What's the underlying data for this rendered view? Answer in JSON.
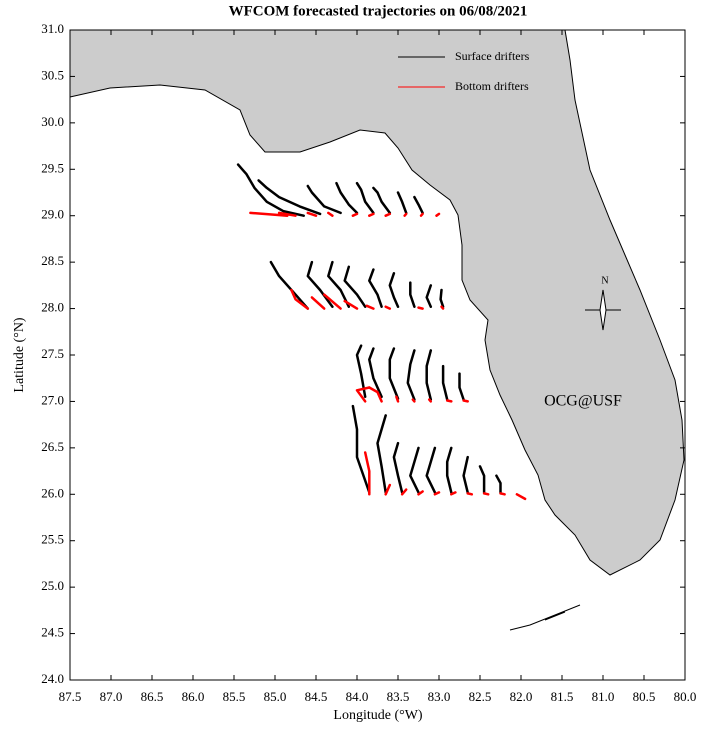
{
  "chart_data": {
    "type": "trajectory",
    "title": "WFCOM forecasted trajectories on 06/08/2021",
    "xlabel": "Longitude (°W)",
    "ylabel": "Latitude (°N)",
    "annotation": "OCG@USF",
    "annotation_color": "#ff0000",
    "compass_label": "N",
    "xlim": [
      87.5,
      80.0
    ],
    "ylim": [
      24.0,
      31.0
    ],
    "xticks": [
      87.5,
      {
        "value": 87,
        "label": "87.0"
      },
      86.5,
      {
        "value": 86,
        "label": "86.0"
      },
      85.5,
      {
        "value": 85,
        "label": "85.0"
      },
      84.5,
      {
        "value": 84,
        "label": "84.0"
      },
      83.5,
      {
        "value": 83,
        "label": "83.0"
      },
      82.5,
      {
        "value": 82,
        "label": "82.0"
      },
      81.5,
      {
        "value": 81,
        "label": "81.0"
      },
      80.5,
      {
        "value": 80,
        "label": "80.0"
      }
    ],
    "yticks": [
      {
        "value": 24,
        "label": "24.0"
      },
      24.5,
      {
        "value": 25,
        "label": "25.0"
      },
      25.5,
      {
        "value": 26,
        "label": "26.0"
      },
      26.5,
      {
        "value": 27,
        "label": "27.0"
      },
      27.5,
      {
        "value": 28,
        "label": "28.0"
      },
      28.5,
      {
        "value": 29,
        "label": "29.0"
      },
      29.5,
      {
        "value": 30,
        "label": "30.0"
      },
      30.5,
      {
        "value": 31,
        "label": "31.0"
      }
    ],
    "series": [
      {
        "name": "Surface drifters",
        "color": "#000000",
        "tracks": [
          {
            "x": [
              84.65,
              84.9,
              85.1,
              85.25,
              85.35,
              85.4,
              85.45
            ],
            "y": [
              29.0,
              29.05,
              29.15,
              29.3,
              29.45,
              29.5,
              29.55
            ]
          },
          {
            "x": [
              84.45,
              84.7,
              84.95,
              85.1,
              85.2
            ],
            "y": [
              29.02,
              29.1,
              29.2,
              29.3,
              29.38
            ]
          },
          {
            "x": [
              84.2,
              84.4,
              84.55,
              84.6
            ],
            "y": [
              29.03,
              29.1,
              29.25,
              29.32
            ]
          },
          {
            "x": [
              84.0,
              84.1,
              84.2,
              84.25
            ],
            "y": [
              29.03,
              29.12,
              29.25,
              29.35
            ]
          },
          {
            "x": [
              83.8,
              83.9,
              83.95,
              84.0
            ],
            "y": [
              29.03,
              29.15,
              29.28,
              29.35
            ]
          },
          {
            "x": [
              83.6,
              83.7,
              83.75,
              83.8
            ],
            "y": [
              29.03,
              29.15,
              29.25,
              29.3
            ]
          },
          {
            "x": [
              83.4,
              83.45,
              83.5
            ],
            "y": [
              29.03,
              29.15,
              29.25
            ]
          },
          {
            "x": [
              83.2,
              83.25,
              83.3
            ],
            "y": [
              29.03,
              29.12,
              29.2
            ]
          },
          {
            "x": [
              84.6,
              84.75,
              84.95,
              85.05
            ],
            "y": [
              28.0,
              28.15,
              28.35,
              28.5
            ]
          },
          {
            "x": [
              84.3,
              84.45,
              84.6,
              84.55
            ],
            "y": [
              28.02,
              28.2,
              28.35,
              28.5
            ]
          },
          {
            "x": [
              84.1,
              84.2,
              84.35,
              84.3
            ],
            "y": [
              28.02,
              28.2,
              28.35,
              28.5
            ]
          },
          {
            "x": [
              83.9,
              84.0,
              84.15,
              84.1
            ],
            "y": [
              28.02,
              28.15,
              28.3,
              28.45
            ]
          },
          {
            "x": [
              83.7,
              83.75,
              83.85,
              83.8
            ],
            "y": [
              28.02,
              28.15,
              28.3,
              28.42
            ]
          },
          {
            "x": [
              83.5,
              83.55,
              83.6,
              83.55
            ],
            "y": [
              28.02,
              28.12,
              28.25,
              28.38
            ]
          },
          {
            "x": [
              83.3,
              83.35,
              83.35
            ],
            "y": [
              28.02,
              28.15,
              28.28
            ]
          },
          {
            "x": [
              83.1,
              83.15,
              83.1
            ],
            "y": [
              28.02,
              28.12,
              28.25
            ]
          },
          {
            "x": [
              82.95,
              82.98,
              82.97
            ],
            "y": [
              28.02,
              28.1,
              28.2
            ]
          },
          {
            "x": [
              83.9,
              83.95,
              84.0,
              83.95
            ],
            "y": [
              27.05,
              27.3,
              27.5,
              27.6
            ]
          },
          {
            "x": [
              83.7,
              83.8,
              83.85,
              83.8
            ],
            "y": [
              27.05,
              27.25,
              27.45,
              27.57
            ]
          },
          {
            "x": [
              83.5,
              83.6,
              83.6,
              83.55
            ],
            "y": [
              27.03,
              27.25,
              27.45,
              27.57
            ]
          },
          {
            "x": [
              83.3,
              83.38,
              83.35,
              83.3
            ],
            "y": [
              27.02,
              27.2,
              27.4,
              27.55
            ]
          },
          {
            "x": [
              83.1,
              83.15,
              83.15,
              83.1
            ],
            "y": [
              27.02,
              27.2,
              27.38,
              27.55
            ]
          },
          {
            "x": [
              82.9,
              82.95,
              82.95
            ],
            "y": [
              27.02,
              27.2,
              27.38
            ]
          },
          {
            "x": [
              82.7,
              82.75,
              82.75
            ],
            "y": [
              27.02,
              27.15,
              27.3
            ]
          },
          {
            "x": [
              83.85,
              84.0,
              84.0,
              84.05
            ],
            "y": [
              26.02,
              26.4,
              26.7,
              26.95
            ]
          },
          {
            "x": [
              83.65,
              83.7,
              83.75,
              83.65
            ],
            "y": [
              26.02,
              26.3,
              26.55,
              26.85
            ]
          },
          {
            "x": [
              83.45,
              83.5,
              83.55,
              83.5
            ],
            "y": [
              26.02,
              26.2,
              26.4,
              26.55
            ]
          },
          {
            "x": [
              83.25,
              83.35,
              83.3,
              83.25
            ],
            "y": [
              26.02,
              26.2,
              26.35,
              26.5
            ]
          },
          {
            "x": [
              83.05,
              83.15,
              83.1,
              83.05
            ],
            "y": [
              26.02,
              26.2,
              26.35,
              26.5
            ]
          },
          {
            "x": [
              82.85,
              82.9,
              82.9,
              82.85
            ],
            "y": [
              26.02,
              26.2,
              26.35,
              26.5
            ]
          },
          {
            "x": [
              82.65,
              82.7,
              82.65
            ],
            "y": [
              26.02,
              26.2,
              26.4
            ]
          },
          {
            "x": [
              82.45,
              82.45,
              82.5
            ],
            "y": [
              26.02,
              26.2,
              26.3
            ]
          },
          {
            "x": [
              82.25,
              82.25,
              82.3
            ],
            "y": [
              26.02,
              26.12,
              26.2
            ]
          }
        ]
      },
      {
        "name": "Bottom drifters",
        "color": "#ff0000",
        "tracks": [
          {
            "x": [
              85.3,
              85.0,
              84.85
            ],
            "y": [
              29.03,
              29.01,
              29.0
            ]
          },
          {
            "x": [
              84.95,
              84.75
            ],
            "y": [
              29.03,
              29.0
            ]
          },
          {
            "x": [
              84.6,
              84.5
            ],
            "y": [
              29.03,
              29.0
            ]
          },
          {
            "x": [
              84.35,
              84.3
            ],
            "y": [
              29.03,
              29.0
            ]
          },
          {
            "x": [
              84.0,
              84.05
            ],
            "y": [
              29.02,
              29.0
            ]
          },
          {
            "x": [
              83.8,
              83.85
            ],
            "y": [
              29.02,
              29.0
            ]
          },
          {
            "x": [
              83.6,
              83.65
            ],
            "y": [
              29.02,
              29.0
            ]
          },
          {
            "x": [
              83.4,
              83.42
            ],
            "y": [
              29.02,
              29.0
            ]
          },
          {
            "x": [
              83.2,
              83.22
            ],
            "y": [
              29.02,
              29.0
            ]
          },
          {
            "x": [
              83.0,
              83.03
            ],
            "y": [
              29.02,
              29.0
            ]
          },
          {
            "x": [
              84.6,
              84.75,
              84.8
            ],
            "y": [
              28.0,
              28.1,
              28.2
            ]
          },
          {
            "x": [
              84.4,
              84.55
            ],
            "y": [
              28.0,
              28.12
            ]
          },
          {
            "x": [
              84.2,
              84.4
            ],
            "y": [
              28.0,
              28.15
            ]
          },
          {
            "x": [
              84.0,
              84.15
            ],
            "y": [
              28.0,
              28.08
            ]
          },
          {
            "x": [
              83.8,
              83.88
            ],
            "y": [
              28.0,
              28.03
            ]
          },
          {
            "x": [
              83.6,
              83.65
            ],
            "y": [
              28.0,
              28.02
            ]
          },
          {
            "x": [
              83.2,
              83.25
            ],
            "y": [
              28.0,
              28.01
            ]
          },
          {
            "x": [
              82.95,
              82.97
            ],
            "y": [
              28.0,
              28.02
            ]
          },
          {
            "x": [
              83.9,
              84.0,
              83.85
            ],
            "y": [
              27.0,
              27.12,
              27.15
            ]
          },
          {
            "x": [
              83.7,
              83.75,
              83.85
            ],
            "y": [
              27.0,
              27.1,
              27.15
            ]
          },
          {
            "x": [
              83.5,
              83.52
            ],
            "y": [
              27.0,
              27.05
            ]
          },
          {
            "x": [
              83.3,
              83.32
            ],
            "y": [
              27.0,
              27.02
            ]
          },
          {
            "x": [
              83.1,
              83.12
            ],
            "y": [
              27.0,
              27.02
            ]
          },
          {
            "x": [
              82.9,
              82.85
            ],
            "y": [
              27.01,
              27.0
            ]
          },
          {
            "x": [
              82.7,
              82.65
            ],
            "y": [
              27.01,
              27.0
            ]
          },
          {
            "x": [
              83.85,
              83.85,
              83.9
            ],
            "y": [
              26.0,
              26.25,
              26.45
            ]
          },
          {
            "x": [
              83.65,
              83.6
            ],
            "y": [
              26.0,
              26.1
            ]
          },
          {
            "x": [
              83.45,
              83.4
            ],
            "y": [
              26.0,
              26.05
            ]
          },
          {
            "x": [
              83.25,
              83.2
            ],
            "y": [
              26.0,
              26.03
            ]
          },
          {
            "x": [
              83.05,
              83.0
            ],
            "y": [
              26.0,
              26.02
            ]
          },
          {
            "x": [
              82.85,
              82.8
            ],
            "y": [
              26.0,
              26.02
            ]
          },
          {
            "x": [
              82.65,
              82.6
            ],
            "y": [
              26.01,
              26.0
            ]
          },
          {
            "x": [
              82.45,
              82.4
            ],
            "y": [
              26.01,
              26.0
            ]
          },
          {
            "x": [
              82.25,
              82.2
            ],
            "y": [
              26.01,
              26.0
            ]
          },
          {
            "x": [
              82.05,
              81.95
            ],
            "y": [
              26.0,
              25.95
            ]
          }
        ]
      }
    ]
  }
}
